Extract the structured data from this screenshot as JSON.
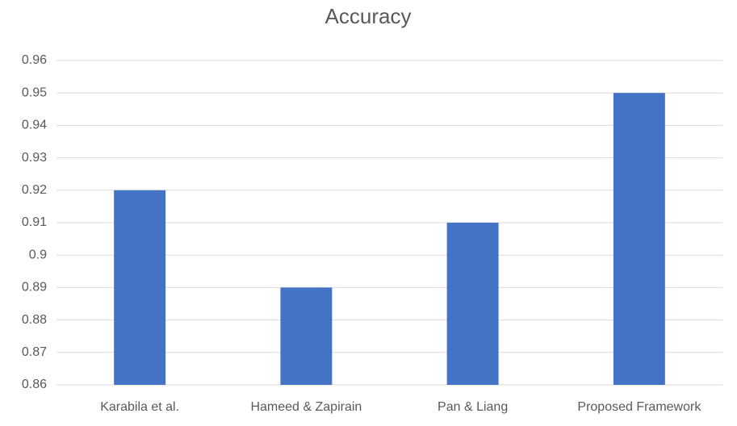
{
  "chart_data": {
    "type": "bar",
    "title": "Accuracy",
    "categories": [
      "Karabila et al.",
      "Hameed & Zapirain",
      "Pan & Liang",
      "Proposed Framework"
    ],
    "values": [
      0.92,
      0.89,
      0.91,
      0.95
    ],
    "color": "#4472c4",
    "ylim": [
      0.86,
      0.96
    ],
    "yticks": [
      0.86,
      0.87,
      0.88,
      0.89,
      0.9,
      0.91,
      0.92,
      0.93,
      0.94,
      0.95,
      0.96
    ],
    "grid": true
  }
}
